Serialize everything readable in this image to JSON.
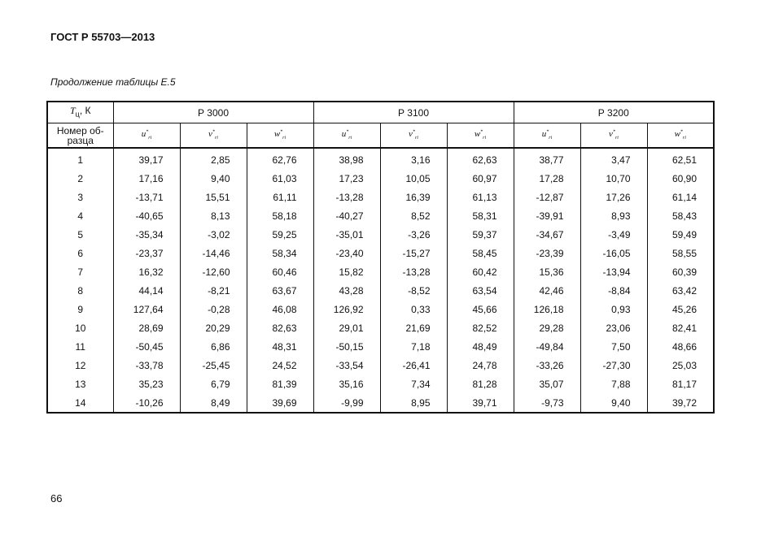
{
  "header": {
    "title": "ГОСТ Р 55703—2013"
  },
  "caption": "Продолжение таблицы Е.5",
  "table": {
    "corner": {
      "symbol": "T",
      "subscript": "ц",
      "unit": ", К"
    },
    "groups": [
      "Р 3000",
      "Р 3100",
      "Р 3200"
    ],
    "row_header": "Номер об-разца",
    "columns": [
      {
        "symbol": "u",
        "sup": "*",
        "sub": "ri"
      },
      {
        "symbol": "v",
        "sup": "*",
        "sub": "ri"
      },
      {
        "symbol": "w",
        "sup": "*",
        "sub": "ri"
      },
      {
        "symbol": "u",
        "sup": "*",
        "sub": "ri"
      },
      {
        "symbol": "v",
        "sup": "*",
        "sub": "ri"
      },
      {
        "symbol": "w",
        "sup": "*",
        "sub": "ri"
      },
      {
        "symbol": "u",
        "sup": "*",
        "sub": "ri"
      },
      {
        "symbol": "v",
        "sup": "*",
        "sub": "ri"
      },
      {
        "symbol": "w",
        "sup": "*",
        "sub": "ri"
      }
    ],
    "rows": [
      [
        "1",
        "39,17",
        "2,85",
        "62,76",
        "38,98",
        "3,16",
        "62,63",
        "38,77",
        "3,47",
        "62,51"
      ],
      [
        "2",
        "17,16",
        "9,40",
        "61,03",
        "17,23",
        "10,05",
        "60,97",
        "17,28",
        "10,70",
        "60,90"
      ],
      [
        "3",
        "-13,71",
        "15,51",
        "61,11",
        "-13,28",
        "16,39",
        "61,13",
        "-12,87",
        "17,26",
        "61,14"
      ],
      [
        "4",
        "-40,65",
        "8,13",
        "58,18",
        "-40,27",
        "8,52",
        "58,31",
        "-39,91",
        "8,93",
        "58,43"
      ],
      [
        "5",
        "-35,34",
        "-3,02",
        "59,25",
        "-35,01",
        "-3,26",
        "59,37",
        "-34,67",
        "-3,49",
        "59,49"
      ],
      [
        "6",
        "-23,37",
        "-14,46",
        "58,34",
        "-23,40",
        "-15,27",
        "58,45",
        "-23,39",
        "-16,05",
        "58,55"
      ],
      [
        "7",
        "16,32",
        "-12,60",
        "60,46",
        "15,82",
        "-13,28",
        "60,42",
        "15,36",
        "-13,94",
        "60,39"
      ],
      [
        "8",
        "44,14",
        "-8,21",
        "63,67",
        "43,28",
        "-8,52",
        "63,54",
        "42,46",
        "-8,84",
        "63,42"
      ],
      [
        "9",
        "127,64",
        "-0,28",
        "46,08",
        "126,92",
        "0,33",
        "45,66",
        "126,18",
        "0,93",
        "45,26"
      ],
      [
        "10",
        "28,69",
        "20,29",
        "82,63",
        "29,01",
        "21,69",
        "82,52",
        "29,28",
        "23,06",
        "82,41"
      ],
      [
        "11",
        "-50,45",
        "6,86",
        "48,31",
        "-50,15",
        "7,18",
        "48,49",
        "-49,84",
        "7,50",
        "48,66"
      ],
      [
        "12",
        "-33,78",
        "-25,45",
        "24,52",
        "-33,54",
        "-26,41",
        "24,78",
        "-33,26",
        "-27,30",
        "25,03"
      ],
      [
        "13",
        "35,23",
        "6,79",
        "81,39",
        "35,16",
        "7,34",
        "81,28",
        "35,07",
        "7,88",
        "81,17"
      ],
      [
        "14",
        "-10,26",
        "8,49",
        "39,69",
        "-9,99",
        "8,95",
        "39,71",
        "-9,73",
        "9,40",
        "39,72"
      ]
    ]
  },
  "footer": {
    "page": "66"
  }
}
